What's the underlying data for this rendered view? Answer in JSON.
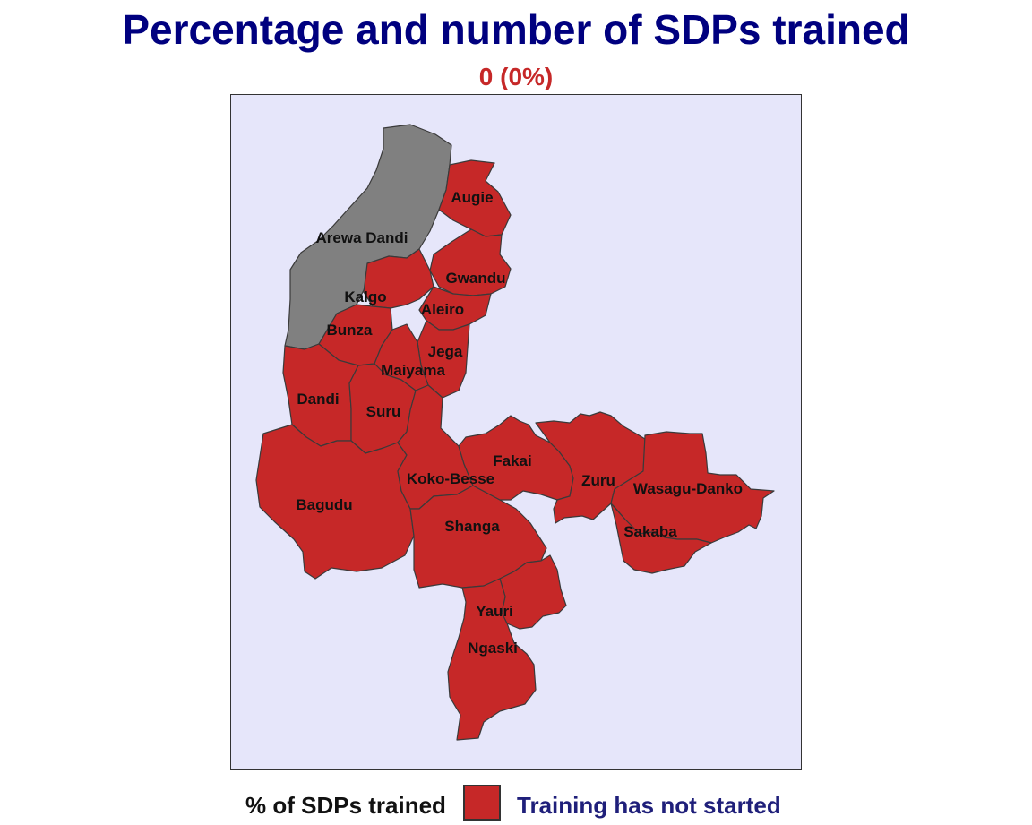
{
  "title": "Percentage and number of SDPs trained",
  "subtitle": "0 (0%)",
  "colors": {
    "not_started": "#c62828",
    "no_data": "#808080",
    "water_background": "#e6e6fa",
    "title": "#00007f",
    "subtitle": "#c62828"
  },
  "map": {
    "regions": [
      {
        "name": "Arewa Dandi",
        "status": "no data"
      },
      {
        "name": "Augie",
        "status": "Training has not started"
      },
      {
        "name": "Gwandu",
        "status": "Training has not started"
      },
      {
        "name": "Kalgo",
        "status": "Training has not started"
      },
      {
        "name": "Aleiro",
        "status": "Training has not started"
      },
      {
        "name": "Bunza",
        "status": "Training has not started"
      },
      {
        "name": "Jega",
        "status": "Training has not started"
      },
      {
        "name": "Maiyama",
        "status": "Training has not started"
      },
      {
        "name": "Dandi",
        "status": "Training has not started"
      },
      {
        "name": "Suru",
        "status": "Training has not started"
      },
      {
        "name": "Fakai",
        "status": "Training has not started"
      },
      {
        "name": "Koko-Besse",
        "status": "Training has not started"
      },
      {
        "name": "Zuru",
        "status": "Training has not started"
      },
      {
        "name": "Wasagu-Danko",
        "status": "Training has not started"
      },
      {
        "name": "Bagudu",
        "status": "Training has not started"
      },
      {
        "name": "Shanga",
        "status": "Training has not started"
      },
      {
        "name": "Sakaba",
        "status": "Training has not started"
      },
      {
        "name": "Yauri",
        "status": "Training has not started"
      },
      {
        "name": "Ngaski",
        "status": "Training has not started"
      }
    ]
  },
  "legend": {
    "title": "% of SDPs trained",
    "items": [
      {
        "label": "Training has not started",
        "color": "#c62828"
      }
    ]
  }
}
